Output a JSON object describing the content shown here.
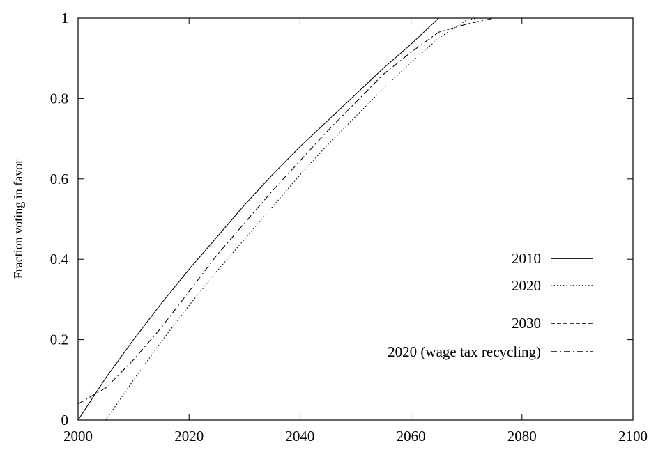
{
  "chart_data": {
    "type": "line",
    "title": "",
    "xlabel": "",
    "ylabel": "Fraction voting in favor",
    "xlim": [
      2000,
      2100
    ],
    "ylim": [
      0,
      1
    ],
    "xticks": [
      2000,
      2020,
      2040,
      2060,
      2080,
      2100
    ],
    "yticks": [
      0,
      0.2,
      0.4,
      0.6,
      0.8,
      1
    ],
    "ytick_labels": [
      "0",
      "0.2",
      "0.4",
      "0.6",
      "0.8",
      "1"
    ],
    "grid": false,
    "legend_position": "right",
    "series": [
      {
        "name": "2010",
        "style": "solid",
        "x": [
          2000,
          2005,
          2010,
          2015,
          2020,
          2025,
          2030,
          2035,
          2040,
          2045,
          2050,
          2055,
          2060,
          2065,
          2070,
          2075,
          2080,
          2090,
          2099
        ],
        "y": [
          0.0,
          0.105,
          0.2,
          0.29,
          0.375,
          0.455,
          0.535,
          0.61,
          0.68,
          0.745,
          0.81,
          0.875,
          0.935,
          1.0,
          1.0,
          1.0,
          1.0,
          1.0,
          1.0
        ]
      },
      {
        "name": "2020",
        "style": "dotted",
        "x": [
          2005,
          2010,
          2015,
          2020,
          2025,
          2030,
          2035,
          2040,
          2045,
          2050,
          2055,
          2060,
          2065,
          2070,
          2072,
          2075,
          2080,
          2090,
          2099
        ],
        "y": [
          0.0,
          0.1,
          0.195,
          0.285,
          0.37,
          0.45,
          0.53,
          0.61,
          0.685,
          0.755,
          0.825,
          0.89,
          0.95,
          0.995,
          1.0,
          1.0,
          1.0,
          1.0,
          1.0
        ]
      },
      {
        "name": "2030",
        "style": "dashed",
        "x": [
          2000,
          2099
        ],
        "y": [
          0.5,
          0.5
        ]
      },
      {
        "name": "2020 (wage tax recycling)",
        "style": "dashdot",
        "x": [
          2000,
          2005,
          2010,
          2015,
          2020,
          2025,
          2030,
          2035,
          2040,
          2045,
          2050,
          2055,
          2060,
          2065,
          2070,
          2075,
          2080,
          2090,
          2099
        ],
        "y": [
          0.04,
          0.08,
          0.15,
          0.23,
          0.32,
          0.41,
          0.49,
          0.57,
          0.645,
          0.72,
          0.79,
          0.86,
          0.915,
          0.965,
          0.985,
          1.0,
          1.0,
          1.0,
          1.0
        ]
      }
    ]
  }
}
